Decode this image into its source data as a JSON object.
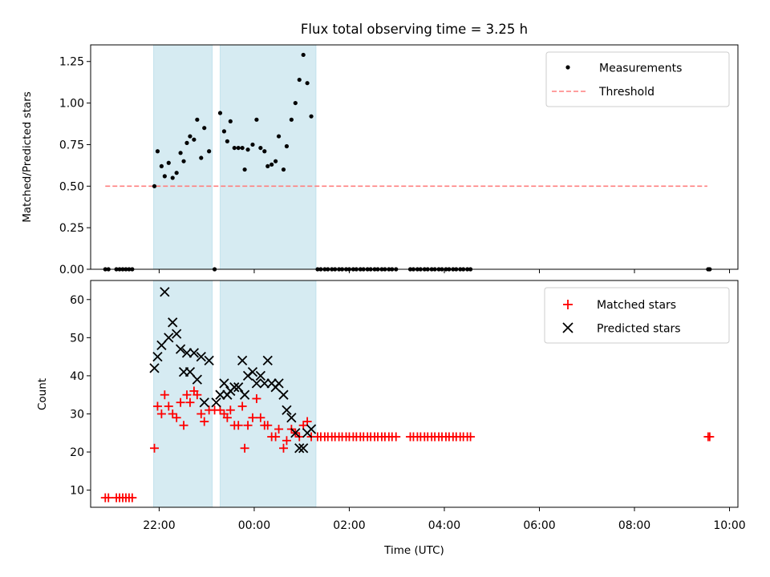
{
  "chart_data": [
    {
      "type": "scatter",
      "title": "Flux total observing time = 3.25 h",
      "ylabel": "Matched/Predicted stars",
      "xlabel": "",
      "x_domain": [
        "21:00",
        "10:00"
      ],
      "ylim": [
        0,
        1.35
      ],
      "yticks": [
        0,
        0.25,
        0.5,
        0.75,
        1.0,
        1.25
      ],
      "ytick_labels": [
        "0.00",
        "0.25",
        "0.50",
        "0.75",
        "1.00",
        "1.25"
      ],
      "legend_position": "top-right",
      "shaded_intervals": [
        [
          "21:53",
          "23:07"
        ],
        [
          "23:17",
          "01:18"
        ]
      ],
      "threshold": {
        "name": "Threshold",
        "value": 0.5,
        "x_start": "20:52",
        "x_end": "09:32",
        "color": "#ff7f7f"
      },
      "series": [
        {
          "name": "Measurements",
          "color": "#000000",
          "points": [
            [
              "20:52",
              0
            ],
            [
              "20:56",
              0
            ],
            [
              "21:06",
              0
            ],
            [
              "21:10",
              0
            ],
            [
              "21:14",
              0
            ],
            [
              "21:18",
              0
            ],
            [
              "21:22",
              0
            ],
            [
              "21:26",
              0
            ],
            [
              "21:54",
              0.5
            ],
            [
              "21:58",
              0.71
            ],
            [
              "22:03",
              0.62
            ],
            [
              "22:07",
              0.56
            ],
            [
              "22:12",
              0.64
            ],
            [
              "22:17",
              0.55
            ],
            [
              "22:22",
              0.58
            ],
            [
              "22:27",
              0.7
            ],
            [
              "22:31",
              0.65
            ],
            [
              "22:35",
              0.76
            ],
            [
              "22:39",
              0.8
            ],
            [
              "22:44",
              0.78
            ],
            [
              "22:48",
              0.9
            ],
            [
              "22:53",
              0.67
            ],
            [
              "22:57",
              0.85
            ],
            [
              "23:03",
              0.71
            ],
            [
              "23:10",
              0
            ],
            [
              "23:17",
              0.94
            ],
            [
              "23:22",
              0.83
            ],
            [
              "23:26",
              0.77
            ],
            [
              "23:30",
              0.89
            ],
            [
              "23:35",
              0.73
            ],
            [
              "23:40",
              0.73
            ],
            [
              "23:45",
              0.73
            ],
            [
              "23:48",
              0.6
            ],
            [
              "23:52",
              0.72
            ],
            [
              "23:58",
              0.75
            ],
            [
              "24:03",
              0.9
            ],
            [
              "24:08",
              0.73
            ],
            [
              "24:13",
              0.71
            ],
            [
              "24:17",
              0.62
            ],
            [
              "24:22",
              0.63
            ],
            [
              "24:27",
              0.65
            ],
            [
              "24:31",
              0.8
            ],
            [
              "24:37",
              0.6
            ],
            [
              "24:41",
              0.74
            ],
            [
              "24:47",
              0.9
            ],
            [
              "24:52",
              1.0
            ],
            [
              "24:57",
              1.14
            ],
            [
              "25:02",
              1.29
            ],
            [
              "25:07",
              1.12
            ],
            [
              "25:12",
              0.92
            ],
            [
              "25:20",
              0
            ],
            [
              "25:24",
              0
            ],
            [
              "25:29",
              0
            ],
            [
              "25:33",
              0
            ],
            [
              "25:38",
              0
            ],
            [
              "25:42",
              0
            ],
            [
              "25:47",
              0
            ],
            [
              "25:51",
              0
            ],
            [
              "25:56",
              0
            ],
            [
              "26:00",
              0
            ],
            [
              "26:05",
              0
            ],
            [
              "26:09",
              0
            ],
            [
              "26:14",
              0
            ],
            [
              "26:18",
              0
            ],
            [
              "26:23",
              0
            ],
            [
              "26:27",
              0
            ],
            [
              "26:32",
              0
            ],
            [
              "26:36",
              0
            ],
            [
              "26:41",
              0
            ],
            [
              "26:45",
              0
            ],
            [
              "26:50",
              0
            ],
            [
              "26:54",
              0
            ],
            [
              "26:59",
              0
            ],
            [
              "27:17",
              0
            ],
            [
              "27:21",
              0
            ],
            [
              "27:26",
              0
            ],
            [
              "27:30",
              0
            ],
            [
              "27:35",
              0
            ],
            [
              "27:39",
              0
            ],
            [
              "27:44",
              0
            ],
            [
              "27:48",
              0
            ],
            [
              "27:53",
              0
            ],
            [
              "27:57",
              0
            ],
            [
              "28:02",
              0
            ],
            [
              "28:06",
              0
            ],
            [
              "28:11",
              0
            ],
            [
              "28:15",
              0
            ],
            [
              "28:20",
              0
            ],
            [
              "28:24",
              0
            ],
            [
              "28:29",
              0
            ],
            [
              "28:33",
              0
            ],
            [
              "33:33",
              0
            ],
            [
              "33:35",
              0
            ]
          ]
        }
      ]
    },
    {
      "type": "scatter",
      "title": "",
      "ylabel": "Count",
      "xlabel": "Time (UTC)",
      "x_domain": [
        "21:00",
        "10:00"
      ],
      "xticks": [
        "22:00",
        "00:00",
        "02:00",
        "04:00",
        "06:00",
        "08:00",
        "10:00"
      ],
      "ylim": [
        5.5,
        65
      ],
      "yticks": [
        10,
        20,
        30,
        40,
        50,
        60
      ],
      "ytick_labels": [
        "10",
        "20",
        "30",
        "40",
        "50",
        "60"
      ],
      "legend_position": "top-right",
      "shaded_intervals": [
        [
          "21:53",
          "23:07"
        ],
        [
          "23:17",
          "01:18"
        ]
      ],
      "series": [
        {
          "name": "Matched stars",
          "marker": "plus",
          "color": "#ff0000",
          "points": [
            [
              "20:52",
              8
            ],
            [
              "20:56",
              8
            ],
            [
              "21:06",
              8
            ],
            [
              "21:10",
              8
            ],
            [
              "21:14",
              8
            ],
            [
              "21:18",
              8
            ],
            [
              "21:22",
              8
            ],
            [
              "21:26",
              8
            ],
            [
              "21:54",
              21
            ],
            [
              "21:58",
              32
            ],
            [
              "22:03",
              30
            ],
            [
              "22:07",
              35
            ],
            [
              "22:12",
              32
            ],
            [
              "22:17",
              30
            ],
            [
              "22:22",
              29
            ],
            [
              "22:27",
              33
            ],
            [
              "22:31",
              27
            ],
            [
              "22:35",
              35
            ],
            [
              "22:39",
              33
            ],
            [
              "22:44",
              36
            ],
            [
              "22:48",
              35
            ],
            [
              "22:53",
              30
            ],
            [
              "22:57",
              28
            ],
            [
              "23:03",
              31
            ],
            [
              "23:10",
              31
            ],
            [
              "23:17",
              31
            ],
            [
              "23:22",
              30
            ],
            [
              "23:26",
              29
            ],
            [
              "23:30",
              31
            ],
            [
              "23:35",
              27
            ],
            [
              "23:40",
              27
            ],
            [
              "23:45",
              32
            ],
            [
              "23:48",
              21
            ],
            [
              "23:52",
              27
            ],
            [
              "23:58",
              29
            ],
            [
              "24:03",
              34
            ],
            [
              "24:08",
              29
            ],
            [
              "24:13",
              27
            ],
            [
              "24:17",
              27
            ],
            [
              "24:22",
              24
            ],
            [
              "24:27",
              24
            ],
            [
              "24:31",
              26
            ],
            [
              "24:37",
              21
            ],
            [
              "24:41",
              23
            ],
            [
              "24:47",
              26
            ],
            [
              "24:52",
              25
            ],
            [
              "24:57",
              24
            ],
            [
              "25:02",
              27
            ],
            [
              "25:07",
              28
            ],
            [
              "25:12",
              24
            ],
            [
              "25:20",
              24
            ],
            [
              "25:24",
              24
            ],
            [
              "25:29",
              24
            ],
            [
              "25:33",
              24
            ],
            [
              "25:38",
              24
            ],
            [
              "25:42",
              24
            ],
            [
              "25:47",
              24
            ],
            [
              "25:51",
              24
            ],
            [
              "25:56",
              24
            ],
            [
              "26:00",
              24
            ],
            [
              "26:05",
              24
            ],
            [
              "26:09",
              24
            ],
            [
              "26:14",
              24
            ],
            [
              "26:18",
              24
            ],
            [
              "26:23",
              24
            ],
            [
              "26:27",
              24
            ],
            [
              "26:32",
              24
            ],
            [
              "26:36",
              24
            ],
            [
              "26:41",
              24
            ],
            [
              "26:45",
              24
            ],
            [
              "26:50",
              24
            ],
            [
              "26:54",
              24
            ],
            [
              "26:59",
              24
            ],
            [
              "27:17",
              24
            ],
            [
              "27:21",
              24
            ],
            [
              "27:26",
              24
            ],
            [
              "27:30",
              24
            ],
            [
              "27:35",
              24
            ],
            [
              "27:39",
              24
            ],
            [
              "27:44",
              24
            ],
            [
              "27:48",
              24
            ],
            [
              "27:53",
              24
            ],
            [
              "27:57",
              24
            ],
            [
              "28:02",
              24
            ],
            [
              "28:06",
              24
            ],
            [
              "28:11",
              24
            ],
            [
              "28:15",
              24
            ],
            [
              "28:20",
              24
            ],
            [
              "28:24",
              24
            ],
            [
              "28:29",
              24
            ],
            [
              "28:33",
              24
            ],
            [
              "33:33",
              24
            ],
            [
              "33:35",
              24
            ]
          ]
        },
        {
          "name": "Predicted stars",
          "marker": "x",
          "color": "#000000",
          "points": [
            [
              "21:54",
              42
            ],
            [
              "21:58",
              45
            ],
            [
              "22:03",
              48
            ],
            [
              "22:07",
              62
            ],
            [
              "22:12",
              50
            ],
            [
              "22:17",
              54
            ],
            [
              "22:22",
              51
            ],
            [
              "22:27",
              47
            ],
            [
              "22:31",
              41
            ],
            [
              "22:35",
              46
            ],
            [
              "22:39",
              41
            ],
            [
              "22:44",
              46
            ],
            [
              "22:48",
              39
            ],
            [
              "22:53",
              45
            ],
            [
              "22:57",
              33
            ],
            [
              "23:03",
              44
            ],
            [
              "23:12",
              33
            ],
            [
              "23:17",
              35
            ],
            [
              "23:22",
              38
            ],
            [
              "23:26",
              35
            ],
            [
              "23:30",
              36
            ],
            [
              "23:35",
              37
            ],
            [
              "23:40",
              37
            ],
            [
              "23:45",
              44
            ],
            [
              "23:48",
              35
            ],
            [
              "23:52",
              40
            ],
            [
              "23:58",
              41
            ],
            [
              "24:03",
              38
            ],
            [
              "24:08",
              40
            ],
            [
              "24:13",
              38
            ],
            [
              "24:17",
              44
            ],
            [
              "24:22",
              38
            ],
            [
              "24:27",
              37
            ],
            [
              "24:31",
              38
            ],
            [
              "24:37",
              35
            ],
            [
              "24:41",
              31
            ],
            [
              "24:47",
              29
            ],
            [
              "24:52",
              25
            ],
            [
              "24:57",
              21
            ],
            [
              "25:02",
              21
            ],
            [
              "25:07",
              25
            ],
            [
              "25:12",
              26
            ]
          ]
        }
      ]
    }
  ]
}
